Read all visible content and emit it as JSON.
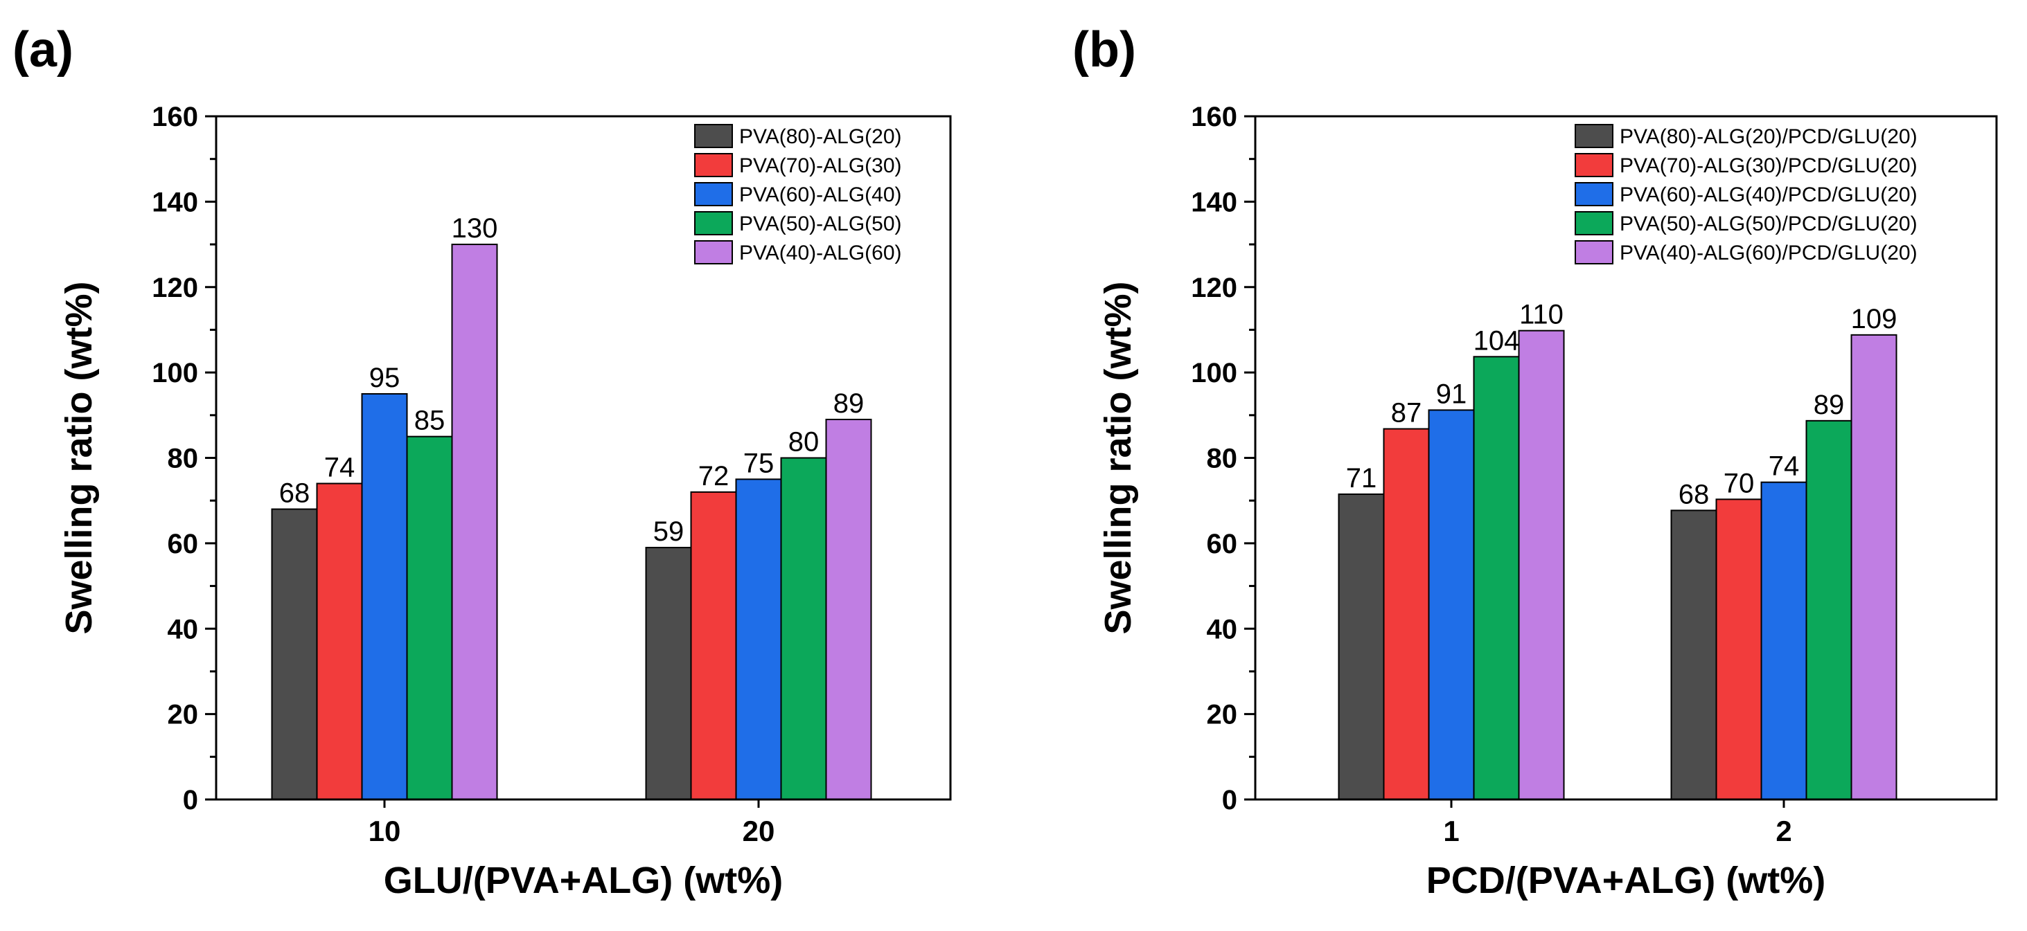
{
  "chart_data": [
    {
      "type": "bar",
      "panel": "(a)",
      "xlabel": "GLU/(PVA+ALG) (wt%)",
      "ylabel": "Swelling ratio (wt%)",
      "ylim": [
        0,
        160
      ],
      "yticks": [
        0,
        20,
        40,
        60,
        80,
        100,
        120,
        140,
        160
      ],
      "categories": [
        "10",
        "20"
      ],
      "legend_position": "top-right",
      "series": [
        {
          "name": "PVA(80)-ALG(20)",
          "color": "#4d4d4d",
          "values": [
            68,
            59
          ]
        },
        {
          "name": "PVA(70)-ALG(30)",
          "color": "#f23c3c",
          "values": [
            74,
            72
          ]
        },
        {
          "name": "PVA(60)-ALG(40)",
          "color": "#1f6ee8",
          "values": [
            95,
            75
          ]
        },
        {
          "name": "PVA(50)-ALG(50)",
          "color": "#0ca85a",
          "values": [
            85,
            80
          ]
        },
        {
          "name": "PVA(40)-ALG(60)",
          "color": "#c07ee3",
          "values": [
            130,
            89
          ]
        }
      ],
      "data_labels": [
        [
          "68",
          "74",
          "95",
          "85",
          "130"
        ],
        [
          "59",
          "72",
          "75",
          "80",
          "89"
        ]
      ]
    },
    {
      "type": "bar",
      "panel": "(b)",
      "xlabel": "PCD/(PVA+ALG) (wt%)",
      "ylabel": "Swelling ratio (wt%)",
      "ylim": [
        0,
        160
      ],
      "yticks": [
        0,
        20,
        40,
        60,
        80,
        100,
        120,
        140,
        160
      ],
      "categories": [
        "1",
        "2"
      ],
      "legend_position": "top-right",
      "series": [
        {
          "name": "PVA(80)-ALG(20)/PCD/GLU(20)",
          "color": "#4d4d4d",
          "values": [
            71.5,
            67.7
          ]
        },
        {
          "name": "PVA(70)-ALG(30)/PCD/GLU(20)",
          "color": "#f23c3c",
          "values": [
            86.8,
            70.3
          ]
        },
        {
          "name": "PVA(60)-ALG(40)/PCD/GLU(20)",
          "color": "#1f6ee8",
          "values": [
            91.2,
            74.3
          ]
        },
        {
          "name": "PVA(50)-ALG(50)/PCD/GLU(20)",
          "color": "#0ca85a",
          "values": [
            103.7,
            88.7
          ]
        },
        {
          "name": "PVA(40)-ALG(60)/PCD/GLU(20)",
          "color": "#c07ee3",
          "values": [
            109.8,
            108.8
          ]
        }
      ],
      "data_labels": [
        [
          "71",
          "87",
          "91",
          "104",
          "110"
        ],
        [
          "68",
          "70",
          "74",
          "89",
          "109"
        ]
      ]
    }
  ]
}
